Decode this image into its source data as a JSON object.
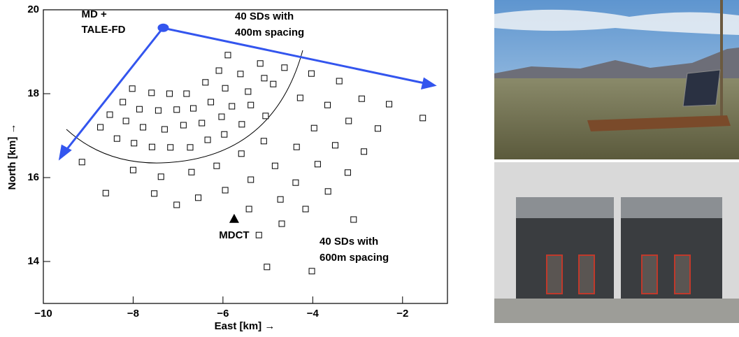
{
  "chart_data": {
    "type": "scatter",
    "xlabel": "East [km] →",
    "ylabel": "North [km] →",
    "xlim": [
      -10,
      -1
    ],
    "ylim": [
      13,
      20
    ],
    "xticks": [
      {
        "value": -10,
        "label": "−10"
      },
      {
        "value": -8,
        "label": "−8"
      },
      {
        "value": -6,
        "label": "−6"
      },
      {
        "value": -4,
        "label": "−4"
      },
      {
        "value": -2,
        "label": "−2"
      }
    ],
    "yticks": [
      14,
      16,
      18,
      20
    ],
    "color": "#000000",
    "x": [
      -5.89,
      -5.17,
      -4.63,
      -6.09,
      -5.61,
      -5.08,
      -4.03,
      -3.41,
      -6.39,
      -5.95,
      -5.44,
      -4.88,
      -8.02,
      -7.59,
      -7.19,
      -6.81,
      -4.28,
      -3.67,
      -2.91,
      -2.3,
      -1.55,
      -8.23,
      -8.52,
      -7.86,
      -7.44,
      -7.03,
      -6.66,
      -6.27,
      -5.8,
      -5.38,
      -5.05,
      -5.58,
      -6.03,
      -6.47,
      -6.88,
      -7.3,
      -7.78,
      -8.16,
      -8.73,
      -8.36,
      -7.98,
      -7.58,
      -7.17,
      -6.73,
      -6.34,
      -5.97,
      -5.09,
      -4.36,
      -3.97,
      -3.2,
      -2.55,
      -3.5,
      -2.86,
      -9.14,
      -8.0,
      -7.38,
      -6.7,
      -6.14,
      -5.59,
      -4.84,
      -3.89,
      -3.22,
      -8.61,
      -7.53,
      -7.03,
      -6.55,
      -5.95,
      -5.38,
      -4.38,
      -3.66,
      -4.72,
      -5.42,
      -4.16,
      -4.69,
      -3.09,
      -5.2,
      -5.02,
      -4.02
    ],
    "y": [
      18.92,
      18.72,
      18.62,
      18.55,
      18.47,
      18.37,
      18.48,
      18.3,
      18.27,
      18.13,
      18.05,
      18.23,
      18.12,
      18.02,
      18.0,
      18.0,
      17.9,
      17.73,
      17.88,
      17.75,
      17.42,
      17.8,
      17.5,
      17.63,
      17.6,
      17.62,
      17.65,
      17.8,
      17.7,
      17.73,
      17.47,
      17.27,
      17.45,
      17.3,
      17.25,
      17.15,
      17.2,
      17.35,
      17.2,
      16.93,
      16.82,
      16.73,
      16.72,
      16.72,
      16.9,
      17.03,
      16.87,
      16.73,
      17.18,
      17.35,
      17.17,
      16.77,
      16.62,
      16.37,
      16.18,
      16.02,
      16.13,
      16.28,
      16.57,
      16.28,
      16.32,
      16.12,
      15.63,
      15.62,
      15.35,
      15.52,
      15.7,
      15.95,
      15.88,
      15.67,
      15.48,
      15.25,
      15.25,
      14.9,
      15.0,
      14.63,
      13.87,
      13.77
    ],
    "markers": [
      {
        "lines": [
          "MD +",
          "TALE-FD"
        ],
        "x": -7.33,
        "y": 19.57,
        "color": "#3355ee"
      },
      {
        "lines": [
          "MDCT"
        ],
        "x": -5.75,
        "y": 15.02,
        "color": "#000000"
      }
    ],
    "annotations": [
      [
        "40 SDs with",
        "400m spacing"
      ],
      [
        "40 SDs with",
        "600m spacing"
      ]
    ]
  }
}
